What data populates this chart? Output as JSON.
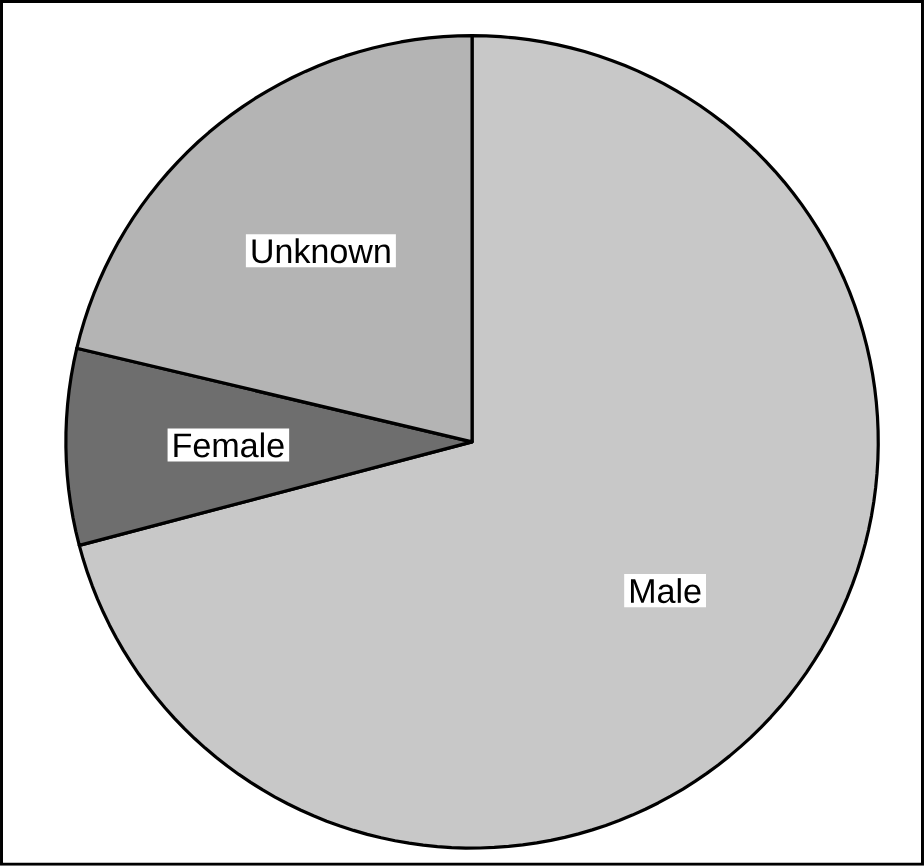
{
  "chart_data": {
    "type": "pie",
    "categories": [
      "Male",
      "Female",
      "Unknown"
    ],
    "values": [
      70.9,
      7.8,
      21.3
    ],
    "colors": [
      "#c8c8c8",
      "#6e6e6e",
      "#b4b4b4"
    ]
  }
}
